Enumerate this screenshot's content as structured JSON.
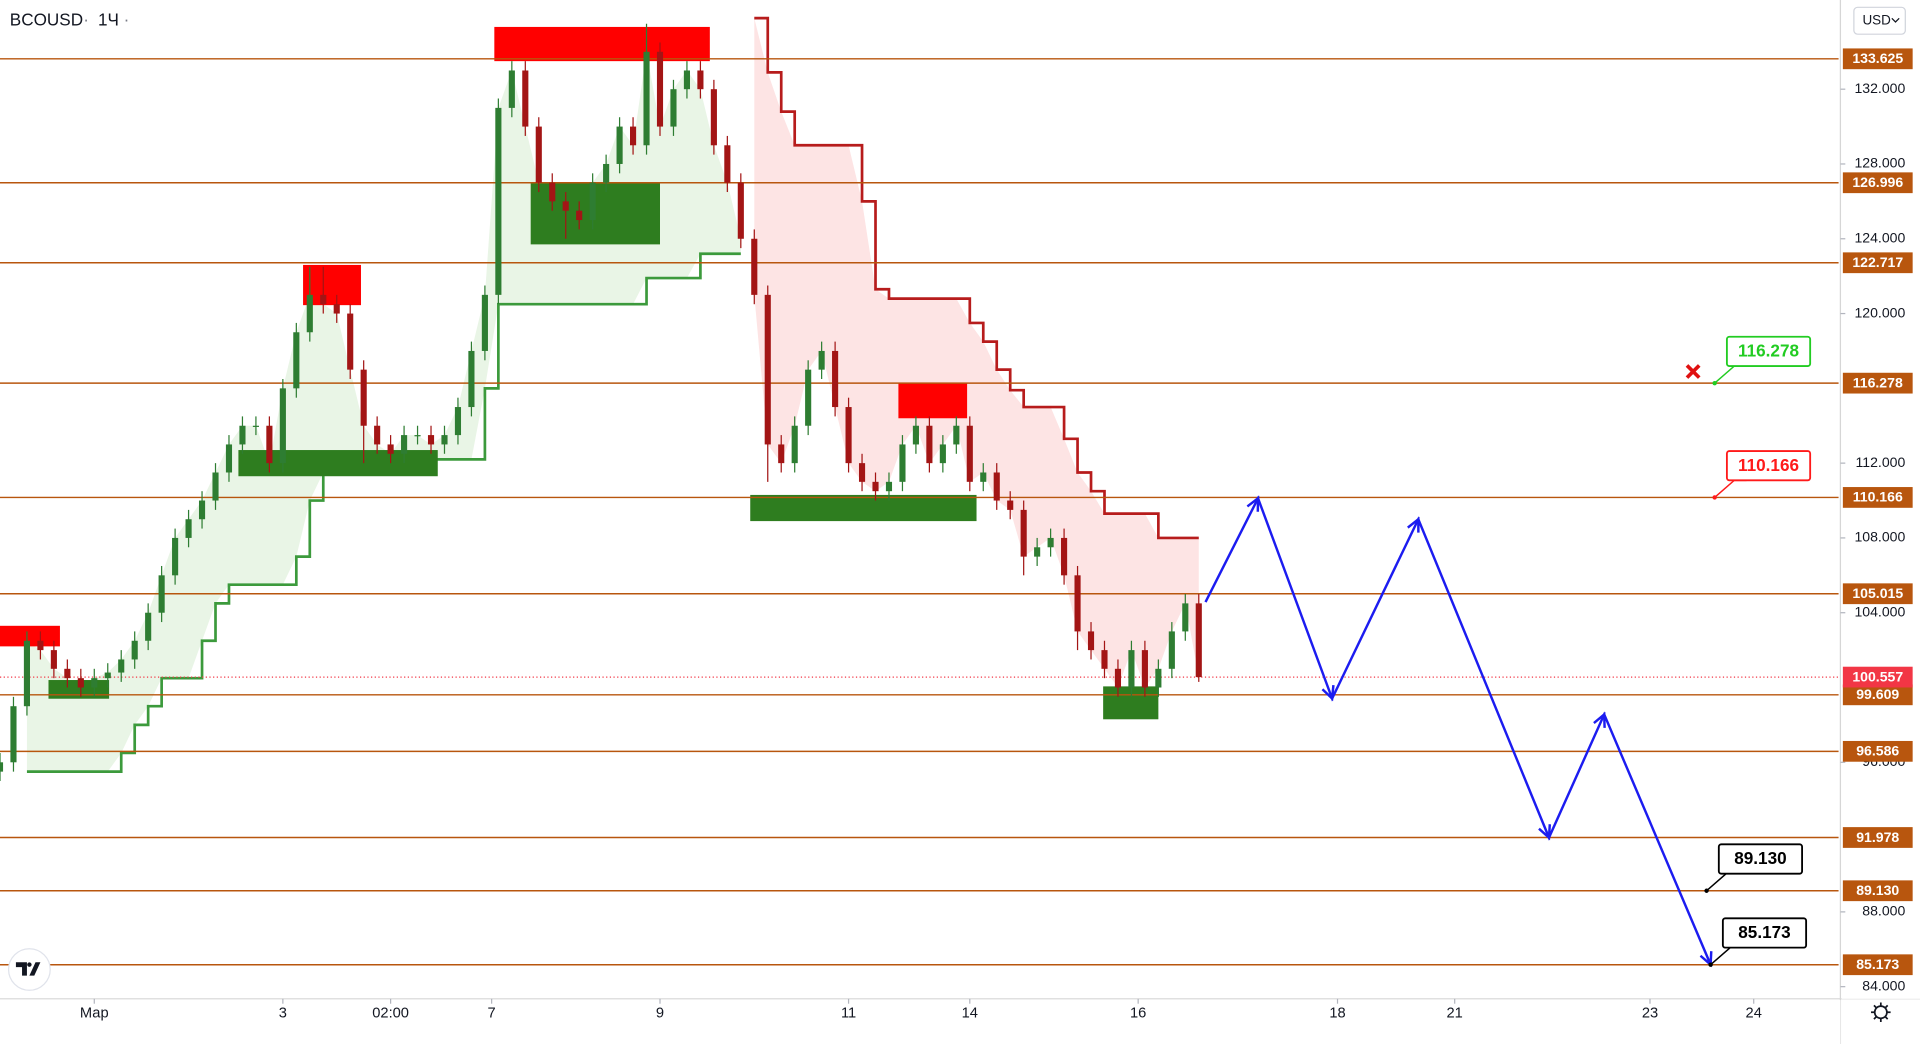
{
  "chart_data": {
    "type": "candlestick",
    "title": "BCOUSD",
    "interval": "1Ч",
    "currency": "USD",
    "x": [
      0,
      1,
      2,
      3,
      4,
      5,
      6,
      7,
      8,
      9,
      10,
      11,
      12,
      13,
      14,
      15,
      16,
      17,
      18,
      19,
      20,
      21,
      22,
      23,
      24,
      25,
      26,
      27,
      28,
      29,
      30,
      31,
      32,
      33,
      34,
      35,
      36,
      37,
      38,
      39,
      40,
      41,
      42,
      43,
      44,
      45,
      46,
      47,
      48,
      49,
      50,
      51,
      52,
      53,
      54,
      55,
      56,
      57,
      58,
      59,
      60,
      61,
      62,
      63,
      64,
      65,
      66,
      67,
      68,
      69,
      70,
      71,
      72,
      73,
      74,
      75,
      76,
      77,
      78,
      79,
      80,
      81,
      82,
      83,
      84,
      85,
      86,
      87,
      88,
      89
    ],
    "open": [
      95.5,
      96,
      99,
      102.5,
      102,
      101,
      100.5,
      100,
      100.5,
      100.8,
      101.5,
      102.5,
      104,
      106,
      108,
      109,
      110,
      111.5,
      113,
      114,
      114,
      112,
      116,
      119,
      121,
      120.5,
      120,
      117,
      114,
      113,
      112.5,
      113.5,
      113.5,
      113,
      113.5,
      115,
      118,
      121,
      131,
      133,
      130,
      127,
      126,
      125.5,
      125,
      127,
      128,
      130,
      129,
      134,
      130,
      132,
      133,
      132,
      129,
      127,
      124,
      121,
      113,
      112,
      114,
      117,
      118,
      115,
      112,
      111,
      110.5,
      111,
      113,
      114,
      112,
      113,
      114,
      111,
      111.5,
      110,
      109.5,
      107,
      107.5,
      108,
      106,
      103,
      102,
      101,
      100,
      102,
      100,
      101,
      103,
      104.5
    ],
    "high": [
      96.5,
      99.5,
      103,
      103,
      102.5,
      101.5,
      101,
      101,
      101.3,
      102,
      103,
      104.5,
      106.5,
      108.5,
      109.5,
      110.5,
      112,
      113.5,
      114.5,
      114.5,
      114.5,
      116.5,
      119.5,
      122.5,
      122.5,
      121,
      120.5,
      117.5,
      114.5,
      113.5,
      114,
      114,
      114,
      114,
      115.5,
      118.5,
      121.5,
      131.5,
      133.5,
      133.5,
      130.5,
      127.5,
      126.5,
      126,
      127.5,
      128.5,
      130.5,
      130.5,
      135.5,
      134.5,
      132.5,
      133.5,
      133.5,
      132.5,
      129.5,
      127.5,
      124.5,
      121.5,
      113.5,
      114.5,
      117.5,
      118.5,
      118.5,
      115.5,
      112.5,
      111.5,
      111.5,
      113.5,
      114.5,
      114.5,
      113.5,
      114.5,
      114.5,
      112,
      112,
      110.5,
      110,
      108,
      108.5,
      108.5,
      106.5,
      103.5,
      102.5,
      101.5,
      102.5,
      102.5,
      101.5,
      103.5,
      105,
      105
    ],
    "low": [
      95,
      95.5,
      98.5,
      101.5,
      100.5,
      100,
      99.5,
      99.5,
      100,
      100.3,
      101,
      102,
      103.5,
      105.5,
      107.5,
      108.5,
      109.5,
      111,
      112.5,
      113.5,
      111.5,
      111.5,
      115.5,
      118.5,
      120,
      119.5,
      116.5,
      112,
      112.5,
      112,
      112,
      113,
      112.5,
      112.5,
      113,
      114.5,
      117.5,
      120.5,
      130.5,
      129.5,
      126.5,
      125.5,
      124,
      124.5,
      124.5,
      126.5,
      127.5,
      128.5,
      128.5,
      129.5,
      129.5,
      131.5,
      131.5,
      128.5,
      126.5,
      123.5,
      120.5,
      111,
      111.5,
      111.5,
      113.5,
      116.5,
      114.5,
      111.5,
      110.5,
      110,
      110,
      110.5,
      112.5,
      111.5,
      111.5,
      112.5,
      110.5,
      110.5,
      109.5,
      109,
      106,
      106.5,
      107,
      105.5,
      102,
      101.5,
      100.5,
      99.5,
      99.5,
      99.5,
      99.5,
      100.5,
      102.5,
      100.3
    ],
    "close": [
      96,
      99,
      102.5,
      102,
      101,
      100.5,
      100,
      100.5,
      100.8,
      101.5,
      102.5,
      104,
      106,
      108,
      109,
      110,
      111.5,
      113,
      114,
      114,
      112,
      116,
      119,
      121,
      120.5,
      120,
      117,
      114,
      113,
      112.5,
      113.5,
      113.5,
      113,
      113.5,
      115,
      118,
      121,
      131,
      133,
      130,
      127,
      126,
      125.5,
      125,
      127,
      128,
      130,
      129,
      134,
      130,
      132,
      133,
      132,
      129,
      127,
      124,
      121,
      113,
      112,
      114,
      117,
      118,
      115,
      112,
      111,
      110.5,
      111,
      113,
      114,
      112,
      113,
      114,
      111,
      111.5,
      110,
      109.5,
      107,
      107.5,
      108,
      106,
      103,
      102,
      101,
      100,
      102,
      100,
      101,
      103,
      104.5,
      100.557
    ],
    "up_color": "#2e7d32",
    "down_color": "#a31515",
    "supertrend": [
      {
        "color": "#3c9a3c",
        "fill": "#e9f5e6",
        "values": [
          null,
          null,
          95.5,
          95.5,
          95.5,
          95.5,
          95.5,
          95.5,
          95.5,
          96.5,
          98,
          99,
          100.5,
          100.5,
          100.5,
          102.5,
          104.5,
          105.5,
          105.5,
          105.5,
          105.5,
          105.5,
          107,
          110,
          111.5,
          112.2,
          112.2,
          112.2,
          112.2,
          112.2,
          112.2,
          112.2,
          112.2,
          112.2,
          112.2,
          112.2,
          116,
          120.5,
          120.5,
          120.5,
          120.5,
          120.5,
          120.5,
          120.5,
          120.5,
          120.5,
          120.5,
          120.5,
          121.9,
          121.9,
          121.9,
          121.9,
          123.2,
          123.2,
          123.2,
          123.2,
          null,
          null,
          null,
          null,
          null,
          null,
          null,
          null,
          null,
          null,
          null,
          null,
          null,
          null,
          null,
          null,
          null,
          null,
          null,
          null,
          null,
          null,
          null,
          null,
          null,
          null,
          null,
          null,
          null,
          null,
          null,
          null,
          null,
          null
        ]
      },
      {
        "color": "#b71c1c",
        "fill": "#fde4e4",
        "values": [
          null,
          null,
          null,
          null,
          null,
          null,
          null,
          null,
          null,
          null,
          null,
          null,
          null,
          null,
          null,
          null,
          null,
          null,
          null,
          null,
          null,
          null,
          null,
          null,
          null,
          null,
          null,
          null,
          null,
          null,
          null,
          null,
          null,
          null,
          null,
          null,
          null,
          null,
          null,
          null,
          null,
          null,
          null,
          null,
          null,
          null,
          null,
          null,
          null,
          null,
          null,
          null,
          null,
          null,
          null,
          null,
          135.8,
          132.9,
          130.8,
          129,
          129,
          129,
          129,
          129,
          126,
          121.3,
          120.8,
          120.8,
          120.8,
          120.8,
          120.8,
          120.8,
          119.5,
          118.5,
          117,
          115.9,
          115,
          115,
          115,
          113.3,
          111.5,
          110.5,
          109.3,
          109.3,
          109.3,
          109.3,
          108,
          108,
          108,
          108
        ]
      }
    ],
    "zones": [
      {
        "x": [
          36.7,
          52.7
        ],
        "y": [
          133.5,
          135.33
        ],
        "color": "#ff0000"
      },
      {
        "x": [
          22.5,
          26.8
        ],
        "y": [
          120.45,
          122.6
        ],
        "color": "#ff0000"
      },
      {
        "x": [
          0,
          4.45
        ],
        "y": [
          102.2,
          103.3
        ],
        "color": "#ff0000"
      },
      {
        "x": [
          66.7,
          71.8
        ],
        "y": [
          114.4,
          116.3
        ],
        "color": "#ff0000"
      },
      {
        "x": [
          39.4,
          49
        ],
        "y": [
          123.7,
          127.03
        ],
        "color": "#2e7d1f"
      },
      {
        "x": [
          17.7,
          32.5
        ],
        "y": [
          111.3,
          112.7
        ],
        "color": "#2e7d1f"
      },
      {
        "x": [
          3.6,
          8.1
        ],
        "y": [
          99.4,
          100.4
        ],
        "color": "#2e7d1f"
      },
      {
        "x": [
          55.7,
          72.5
        ],
        "y": [
          108.9,
          110.3
        ],
        "color": "#2e7d1f"
      },
      {
        "x": [
          81.9,
          86
        ],
        "y": [
          98.3,
          100.06
        ],
        "color": "#2e7d1f"
      }
    ],
    "level_color": "#b8560e",
    "levels": [
      133.625,
      126.996,
      122.717,
      116.278,
      110.166,
      105.015,
      99.609,
      96.586,
      91.978,
      {
        "value": 89.13,
        "label": "89.130"
      },
      85.173
    ],
    "last_price": 100.557,
    "last_color": "#f23645",
    "projection": {
      "color": "#1c1cf0",
      "x": [
        89.5,
        93.4,
        98.9,
        105.3,
        115,
        119.1,
        127
      ],
      "values": [
        104.57,
        110.12,
        99.41,
        109,
        91.97,
        98.56,
        85.18
      ]
    },
    "callouts": [
      {
        "x": 127.3,
        "price": 116.278,
        "color": "#22cc22"
      },
      {
        "x": 127.3,
        "price": 110.166,
        "color": "#ff1a1a"
      },
      {
        "x": 126.7,
        "price": {
          "value": 89.13,
          "label": "89.130"
        },
        "color": "#000000"
      },
      {
        "x": 127,
        "price": 85.173,
        "color": "#000000"
      }
    ],
    "cancel_marker": {
      "x": 125.7,
      "price": 116.9,
      "color": "#e01010"
    },
    "xlim": [
      0,
      136.5
    ],
    "ylim": [
      83.35,
      136.77
    ],
    "yticks": [
      {
        "value": 132,
        "label": "132.000"
      },
      {
        "value": 128,
        "label": "128.000"
      },
      {
        "value": 124,
        "label": "124.000"
      },
      {
        "value": 120,
        "label": "120.000"
      },
      {
        "value": 112,
        "label": "112.000"
      },
      {
        "value": 108,
        "label": "108.000"
      },
      {
        "value": 104,
        "label": "104.000"
      },
      {
        "value": 96,
        "label": "96.000"
      },
      {
        "value": 88,
        "label": "88.000"
      },
      {
        "value": 84,
        "label": "84.000"
      }
    ],
    "xticks": [
      {
        "value": 7,
        "label": "Мар"
      },
      {
        "value": 21,
        "label": "3"
      },
      {
        "value": 29,
        "label": "02:00"
      },
      {
        "value": 36.5,
        "label": "7"
      },
      {
        "value": 49,
        "label": "9"
      },
      {
        "value": 63,
        "label": "11"
      },
      {
        "value": 72,
        "label": "14"
      },
      {
        "value": 84.5,
        "label": "16"
      },
      {
        "value": 99.3,
        "label": "18"
      },
      {
        "value": 108,
        "label": "21"
      },
      {
        "value": 122.5,
        "label": "23"
      },
      {
        "value": 130.2,
        "label": "24"
      }
    ]
  }
}
